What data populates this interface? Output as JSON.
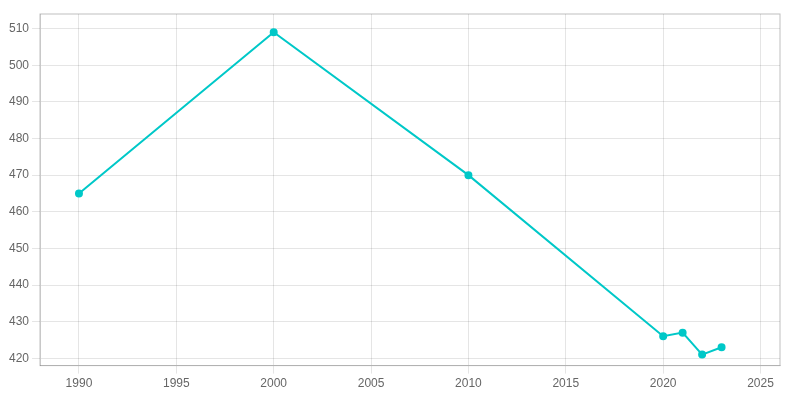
{
  "chart_data": {
    "type": "line",
    "x": [
      1990,
      2000,
      2010,
      2020,
      2021,
      2022,
      2023
    ],
    "values": [
      465,
      509,
      470,
      426,
      427,
      421,
      423
    ],
    "color": "#00C8C8",
    "marker": "circle",
    "xlim": [
      1988,
      2026
    ],
    "ylim": [
      418,
      514
    ],
    "xticks": [
      1990,
      1995,
      2000,
      2005,
      2010,
      2015,
      2020,
      2025
    ],
    "yticks": [
      420,
      430,
      440,
      450,
      460,
      470,
      480,
      490,
      500,
      510
    ],
    "grid": true
  }
}
